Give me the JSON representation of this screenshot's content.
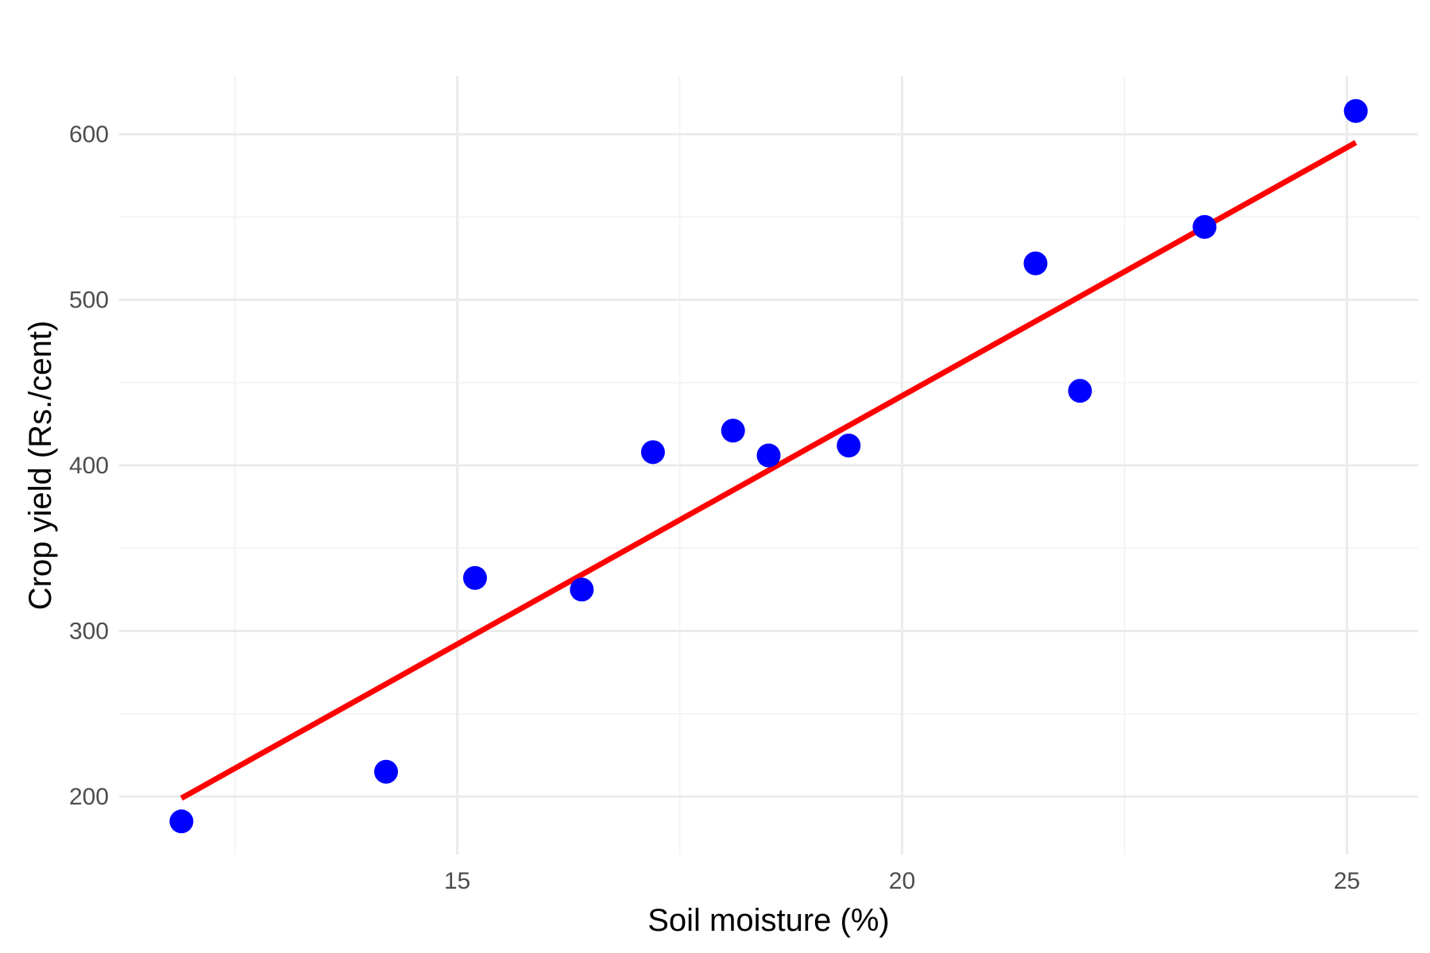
{
  "chart_data": {
    "type": "scatter",
    "title": "",
    "xlabel": "Soil moisture (%)",
    "ylabel": "Crop yield (Rs./cent)",
    "xlim": [
      11.2,
      25.8
    ],
    "ylim": [
      165,
      635
    ],
    "x_ticks": [
      15,
      20,
      25
    ],
    "x_minor_ticks": [
      12.5,
      17.5,
      22.5
    ],
    "y_ticks": [
      200,
      300,
      400,
      500,
      600
    ],
    "y_minor_ticks": [
      250,
      350,
      450,
      550
    ],
    "x_tick_labels": [
      "15",
      "20",
      "25"
    ],
    "y_tick_labels": [
      "200",
      "300",
      "400",
      "500",
      "600"
    ],
    "grid": true,
    "series": [
      {
        "type": "scatter",
        "color": "#0000ff",
        "points": [
          {
            "x": 11.9,
            "y": 185
          },
          {
            "x": 14.2,
            "y": 215
          },
          {
            "x": 15.2,
            "y": 332
          },
          {
            "x": 16.4,
            "y": 325
          },
          {
            "x": 17.2,
            "y": 408
          },
          {
            "x": 18.1,
            "y": 421
          },
          {
            "x": 18.5,
            "y": 406
          },
          {
            "x": 19.4,
            "y": 412
          },
          {
            "x": 21.5,
            "y": 522
          },
          {
            "x": 22.0,
            "y": 445
          },
          {
            "x": 23.4,
            "y": 544
          },
          {
            "x": 25.1,
            "y": 614
          }
        ]
      },
      {
        "type": "line",
        "color": "#ff0000",
        "points": [
          {
            "x": 11.9,
            "y": 199
          },
          {
            "x": 25.1,
            "y": 595
          }
        ]
      }
    ]
  }
}
